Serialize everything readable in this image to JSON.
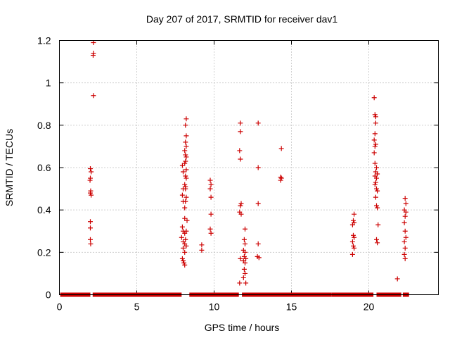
{
  "chart_data": {
    "type": "scatter",
    "title": "Day 207 of 2017, SRMTID for receiver dav1",
    "xlabel": "GPS time / hours",
    "ylabel": "SRMTID / TECUs",
    "xlim": [
      0,
      24.5
    ],
    "ylim": [
      0,
      1.2
    ],
    "x_ticks": [
      0,
      5,
      10,
      15,
      20
    ],
    "x_tick_labels": [
      "0",
      "5",
      "10",
      "15",
      "20"
    ],
    "y_ticks": [
      0,
      0.2,
      0.4,
      0.6,
      0.8,
      1,
      1.2
    ],
    "y_tick_labels": [
      "0",
      "0.2",
      "0.4",
      "0.6",
      "0.8",
      "1",
      "1.2"
    ],
    "grid": true,
    "marker": "+",
    "marker_color": "#cc0000",
    "baseline": {
      "y": 0,
      "segments": [
        [
          0.05,
          2.0
        ],
        [
          2.15,
          7.9
        ],
        [
          8.4,
          11.6
        ],
        [
          11.8,
          17.6
        ],
        [
          17.6,
          20.3
        ],
        [
          20.5,
          22.1
        ],
        [
          22.2,
          22.6
        ]
      ]
    },
    "series": [
      {
        "name": "SRMTID",
        "points": [
          [
            2.0,
            0.595
          ],
          [
            2.05,
            0.58
          ],
          [
            2.0,
            0.55
          ],
          [
            1.98,
            0.54
          ],
          [
            2.02,
            0.49
          ],
          [
            2.0,
            0.48
          ],
          [
            2.05,
            0.47
          ],
          [
            2.0,
            0.345
          ],
          [
            2.0,
            0.315
          ],
          [
            2.0,
            0.26
          ],
          [
            2.02,
            0.24
          ],
          [
            2.2,
            1.19
          ],
          [
            2.2,
            1.14
          ],
          [
            2.18,
            1.13
          ],
          [
            2.2,
            0.94
          ],
          [
            7.95,
            0.61
          ],
          [
            8.0,
            0.58
          ],
          [
            8.0,
            0.5
          ],
          [
            7.95,
            0.47
          ],
          [
            8.0,
            0.44
          ],
          [
            7.95,
            0.32
          ],
          [
            8.0,
            0.3
          ],
          [
            7.9,
            0.27
          ],
          [
            8.0,
            0.25
          ],
          [
            8.0,
            0.22
          ],
          [
            7.95,
            0.17
          ],
          [
            8.0,
            0.16
          ],
          [
            8.05,
            0.15
          ],
          [
            8.1,
            0.68
          ],
          [
            8.1,
            0.62
          ],
          [
            8.1,
            0.52
          ],
          [
            8.15,
            0.51
          ],
          [
            8.1,
            0.41
          ],
          [
            8.1,
            0.36
          ],
          [
            8.1,
            0.29
          ],
          [
            8.1,
            0.24
          ],
          [
            8.1,
            0.2
          ],
          [
            8.1,
            0.14
          ],
          [
            8.2,
            0.83
          ],
          [
            8.15,
            0.8
          ],
          [
            8.2,
            0.75
          ],
          [
            8.15,
            0.72
          ],
          [
            8.2,
            0.7
          ],
          [
            8.15,
            0.66
          ],
          [
            8.2,
            0.65
          ],
          [
            8.15,
            0.63
          ],
          [
            8.2,
            0.59
          ],
          [
            8.15,
            0.56
          ],
          [
            8.2,
            0.55
          ],
          [
            8.15,
            0.5
          ],
          [
            8.2,
            0.46
          ],
          [
            8.15,
            0.44
          ],
          [
            8.25,
            0.35
          ],
          [
            8.2,
            0.3
          ],
          [
            8.15,
            0.26
          ],
          [
            8.2,
            0.23
          ],
          [
            9.75,
            0.54
          ],
          [
            9.8,
            0.52
          ],
          [
            9.75,
            0.5
          ],
          [
            9.8,
            0.46
          ],
          [
            9.8,
            0.38
          ],
          [
            9.75,
            0.31
          ],
          [
            9.8,
            0.29
          ],
          [
            9.2,
            0.235
          ],
          [
            9.2,
            0.21
          ],
          [
            11.7,
            0.81
          ],
          [
            11.7,
            0.77
          ],
          [
            11.65,
            0.68
          ],
          [
            11.7,
            0.64
          ],
          [
            11.75,
            0.43
          ],
          [
            11.7,
            0.42
          ],
          [
            11.65,
            0.39
          ],
          [
            11.75,
            0.38
          ],
          [
            11.7,
            0.17
          ],
          [
            11.65,
            0.055
          ],
          [
            12.0,
            0.31
          ],
          [
            11.95,
            0.26
          ],
          [
            12.0,
            0.24
          ],
          [
            11.9,
            0.21
          ],
          [
            12.0,
            0.2
          ],
          [
            11.95,
            0.18
          ],
          [
            12.05,
            0.17
          ],
          [
            11.9,
            0.16
          ],
          [
            12.0,
            0.15
          ],
          [
            11.95,
            0.12
          ],
          [
            12.0,
            0.1
          ],
          [
            11.9,
            0.08
          ],
          [
            12.05,
            0.055
          ],
          [
            12.85,
            0.81
          ],
          [
            12.85,
            0.6
          ],
          [
            12.85,
            0.43
          ],
          [
            12.85,
            0.24
          ],
          [
            12.8,
            0.18
          ],
          [
            12.9,
            0.175
          ],
          [
            14.35,
            0.69
          ],
          [
            14.3,
            0.555
          ],
          [
            14.35,
            0.55
          ],
          [
            14.3,
            0.54
          ],
          [
            19.05,
            0.38
          ],
          [
            19.0,
            0.35
          ],
          [
            19.05,
            0.34
          ],
          [
            18.95,
            0.33
          ],
          [
            19.0,
            0.28
          ],
          [
            19.05,
            0.27
          ],
          [
            18.95,
            0.25
          ],
          [
            19.0,
            0.23
          ],
          [
            19.05,
            0.22
          ],
          [
            18.95,
            0.19
          ],
          [
            20.35,
            0.93
          ],
          [
            20.4,
            0.85
          ],
          [
            20.45,
            0.84
          ],
          [
            20.45,
            0.81
          ],
          [
            20.4,
            0.76
          ],
          [
            20.35,
            0.73
          ],
          [
            20.45,
            0.71
          ],
          [
            20.4,
            0.7
          ],
          [
            20.35,
            0.67
          ],
          [
            20.4,
            0.62
          ],
          [
            20.5,
            0.6
          ],
          [
            20.45,
            0.58
          ],
          [
            20.55,
            0.57
          ],
          [
            20.4,
            0.56
          ],
          [
            20.5,
            0.55
          ],
          [
            20.45,
            0.53
          ],
          [
            20.4,
            0.52
          ],
          [
            20.5,
            0.5
          ],
          [
            20.55,
            0.49
          ],
          [
            20.45,
            0.46
          ],
          [
            20.5,
            0.42
          ],
          [
            20.55,
            0.41
          ],
          [
            20.6,
            0.33
          ],
          [
            20.5,
            0.26
          ],
          [
            20.55,
            0.245
          ],
          [
            21.85,
            0.075
          ],
          [
            22.35,
            0.455
          ],
          [
            22.4,
            0.43
          ],
          [
            22.3,
            0.4
          ],
          [
            22.4,
            0.39
          ],
          [
            22.35,
            0.37
          ],
          [
            22.3,
            0.34
          ],
          [
            22.35,
            0.3
          ],
          [
            22.4,
            0.27
          ],
          [
            22.3,
            0.25
          ],
          [
            22.35,
            0.22
          ],
          [
            22.3,
            0.19
          ],
          [
            22.35,
            0.17
          ]
        ]
      }
    ]
  }
}
